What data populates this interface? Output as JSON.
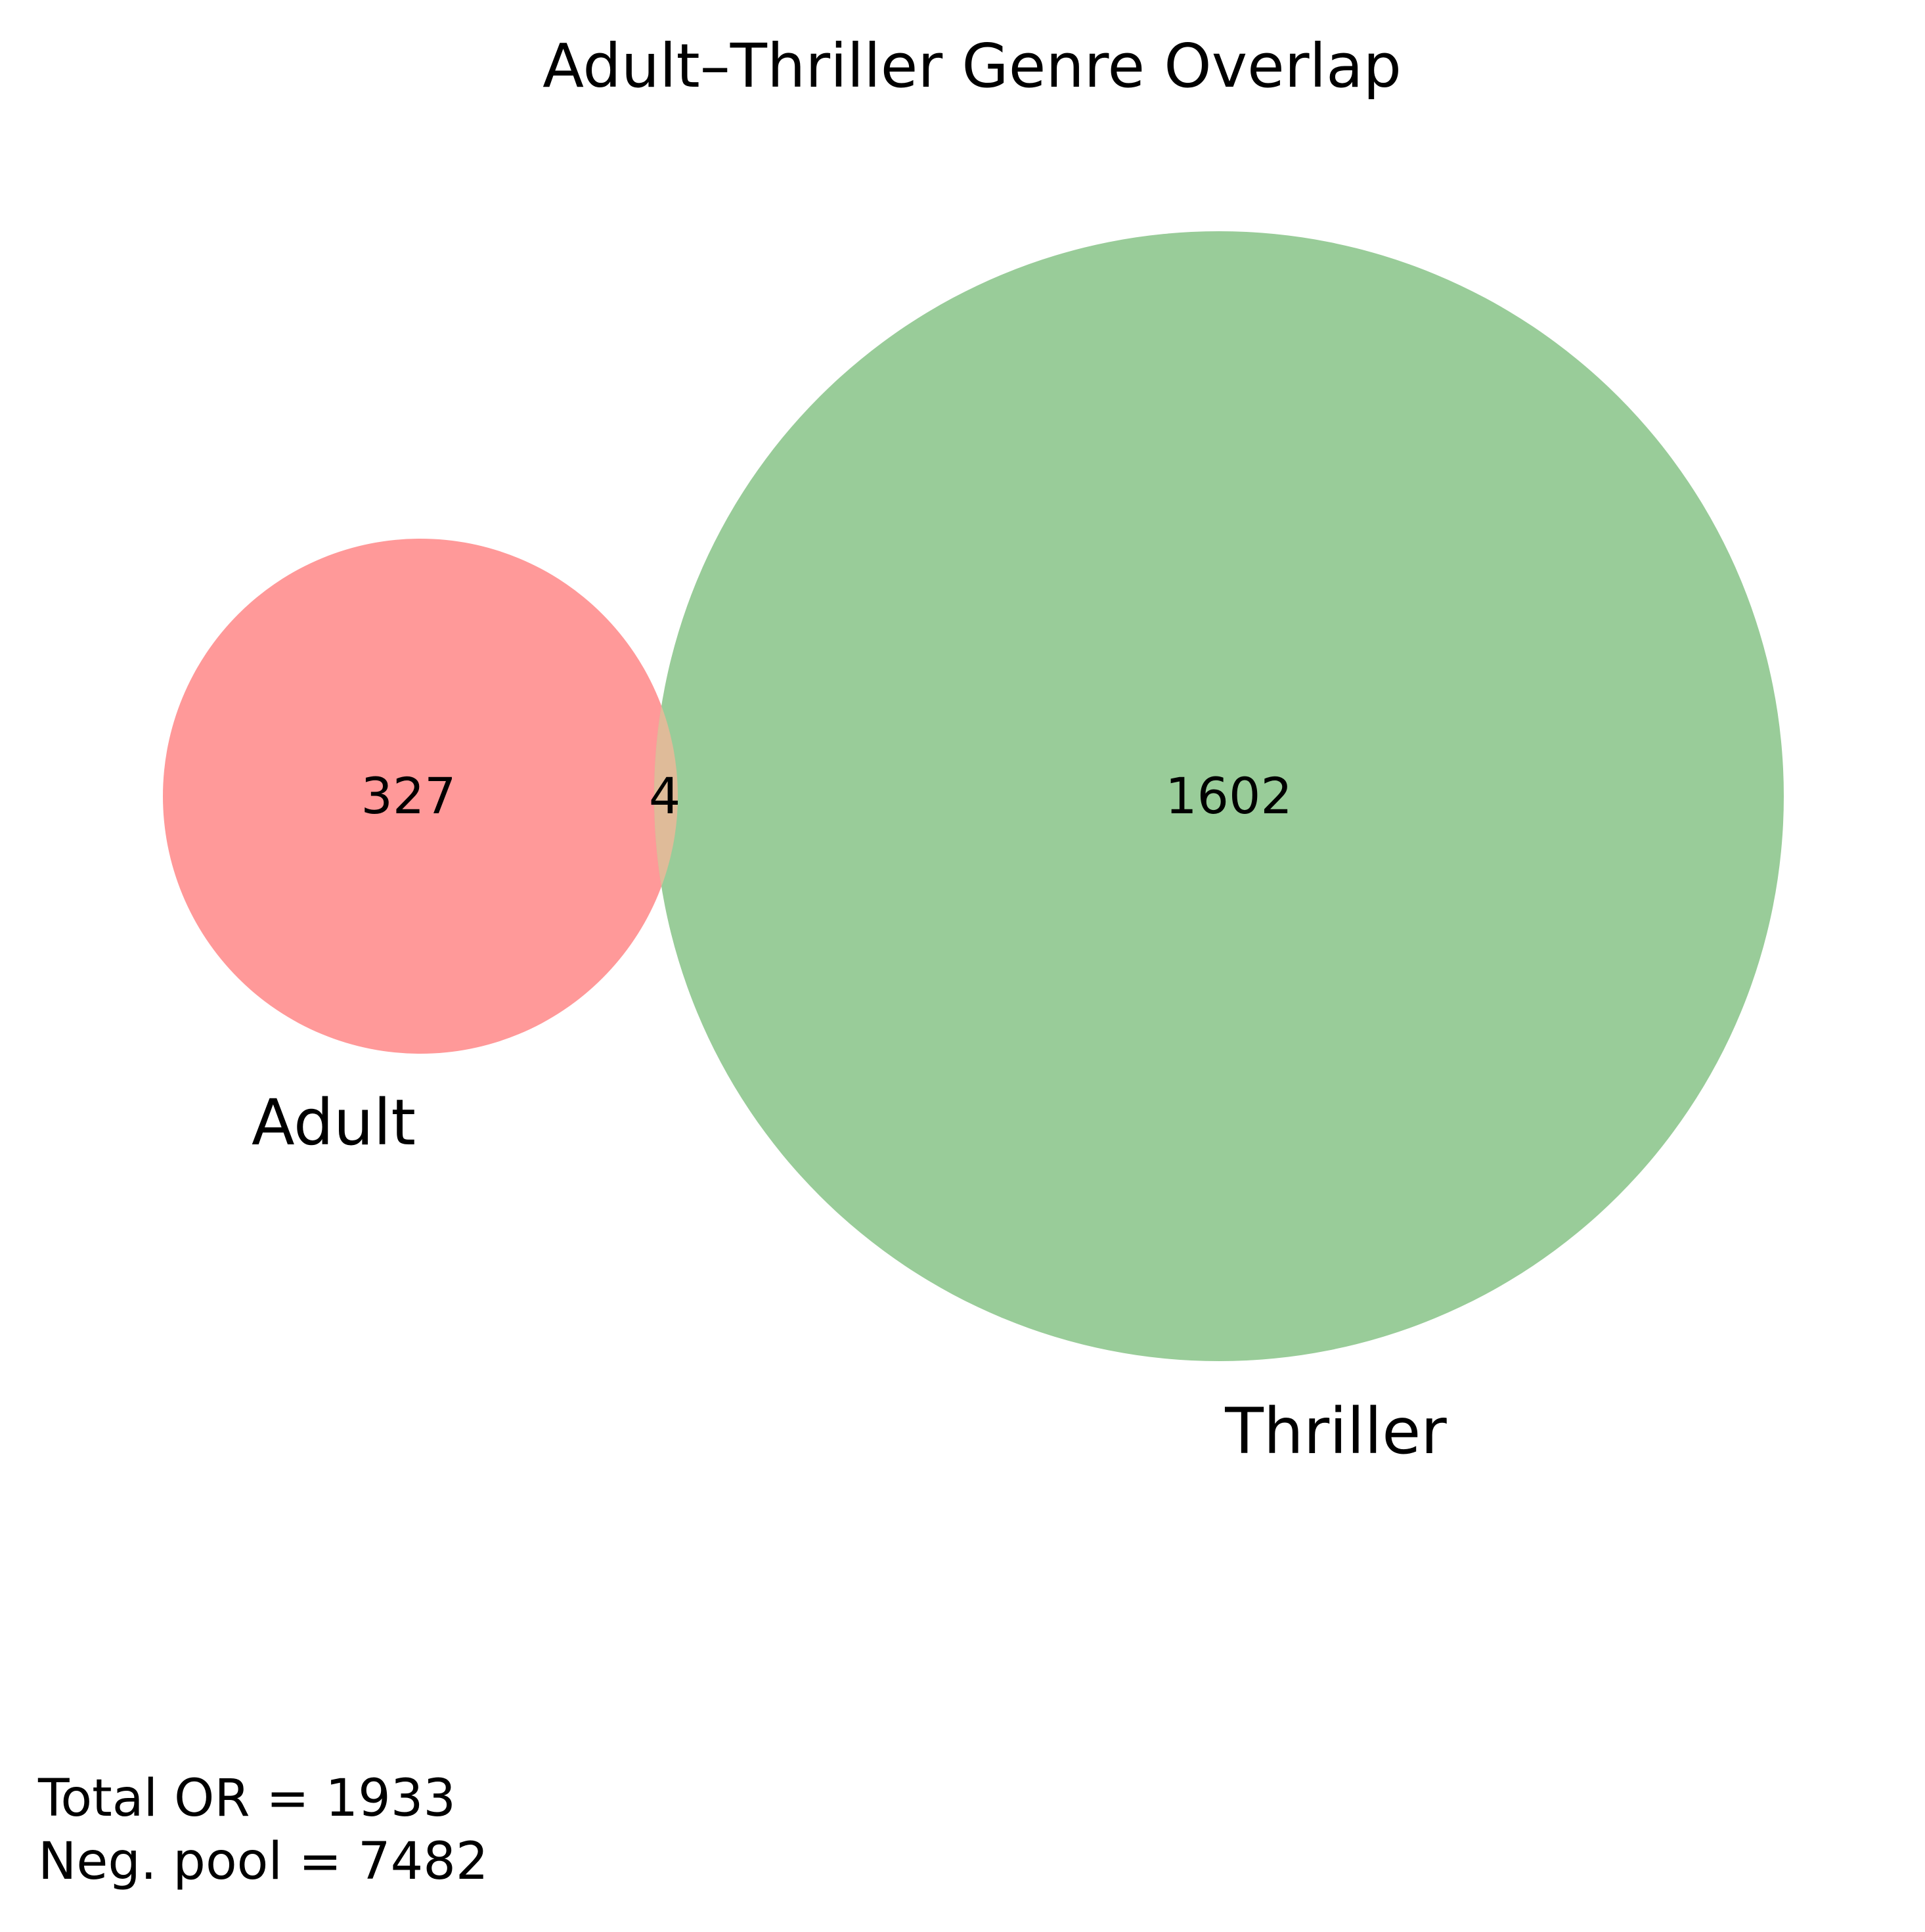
{
  "chart_data": {
    "type": "venn",
    "title": "Adult–Thriller Genre Overlap",
    "sets": [
      {
        "name": "Adult",
        "only_count": "327",
        "color": "#ff9999"
      },
      {
        "name": "Thriller",
        "only_count": "1602",
        "color": "#99cc99"
      }
    ],
    "intersection": {
      "count": "4",
      "color": "#dfbb99"
    },
    "totals": {
      "total_or_text": "Total OR = 1933",
      "neg_pool_text": "Neg. pool = 7482"
    }
  }
}
